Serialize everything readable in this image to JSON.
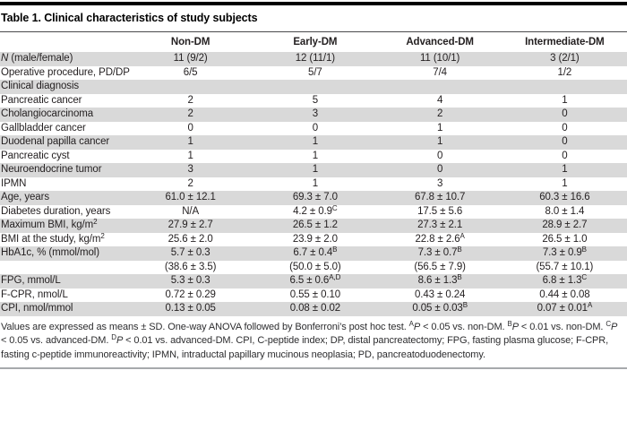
{
  "title": "Table 1. Clinical characteristics of study subjects",
  "table": {
    "row_label_header": "",
    "columns": [
      "Non-DM",
      "Early-DM",
      "Advanced-DM",
      "Intermediate-DM"
    ],
    "rows": [
      {
        "label": "*N* (male/female)",
        "cells": [
          "11 (9/2)",
          "12 (11/1)",
          "11 (10/1)",
          "3 (2/1)"
        ]
      },
      {
        "label": "Operative procedure, PD/DP",
        "cells": [
          "6/5",
          "5/7",
          "7/4",
          "1/2"
        ]
      },
      {
        "label": "Clinical diagnosis",
        "cells": [
          "",
          "",
          "",
          ""
        ],
        "section": true
      },
      {
        "label": "Pancreatic cancer",
        "cells": [
          "2",
          "5",
          "4",
          "1"
        ]
      },
      {
        "label": "Cholangiocarcinoma",
        "cells": [
          "2",
          "3",
          "2",
          "0"
        ]
      },
      {
        "label": "Gallbladder cancer",
        "cells": [
          "0",
          "0",
          "1",
          "0"
        ]
      },
      {
        "label": "Duodenal papilla cancer",
        "cells": [
          "1",
          "1",
          "1",
          "0"
        ]
      },
      {
        "label": "Pancreatic cyst",
        "cells": [
          "1",
          "1",
          "0",
          "0"
        ]
      },
      {
        "label": "Neuroendocrine tumor",
        "cells": [
          "3",
          "1",
          "0",
          "1"
        ]
      },
      {
        "label": "IPMN",
        "cells": [
          "2",
          "1",
          "3",
          "1"
        ]
      },
      {
        "label": "Age, years",
        "cells": [
          "61.0 ± 12.1",
          "69.3 ± 7.0",
          "67.8 ± 10.7",
          "60.3 ± 16.6"
        ]
      },
      {
        "label": "Diabetes duration, years",
        "cells": [
          "N/A",
          "4.2 ± 0.9^{C}",
          "17.5 ± 5.6",
          "8.0 ± 1.4"
        ]
      },
      {
        "label": "Maximum BMI, kg/m^{2}",
        "cells": [
          "27.9 ± 2.7",
          "26.5 ± 1.2",
          "27.3 ± 2.1",
          "28.9 ± 2.7"
        ]
      },
      {
        "label": "BMI at the study, kg/m^{2}",
        "cells": [
          "25.6 ± 2.0",
          "23.9 ± 2.0",
          "22.8 ± 2.6^{A}",
          "26.5 ± 1.0"
        ]
      },
      {
        "label": "HbA1c, % (mmol/mol)",
        "cells": [
          "5.7 ± 0.3",
          "6.7 ± 0.4^{B}",
          "7.3 ± 0.7^{B}",
          "7.3 ± 0.9^{B}"
        ]
      },
      {
        "label": "",
        "cells": [
          "(38.6 ± 3.5)",
          "(50.0 ± 5.0)",
          "(56.5 ± 7.9)",
          "(55.7 ± 10.1)"
        ]
      },
      {
        "label": "FPG, mmol/L",
        "cells": [
          "5.3 ± 0.3",
          "6.5 ± 0.6^{A,D}",
          "8.6 ± 1.3^{B}",
          "6.8 ± 1.3^{C}"
        ]
      },
      {
        "label": "F-CPR, nmol/L",
        "cells": [
          "0.72 ± 0.29",
          "0.55 ± 0.10",
          "0.43 ± 0.24",
          "0.44 ± 0.08"
        ]
      },
      {
        "label": "CPI, nmol/mmol",
        "cells": [
          "0.13 ± 0.05",
          "0.08 ± 0.02",
          "0.05 ± 0.03^{B}",
          "0.07 ± 0.01^{A}"
        ]
      }
    ]
  },
  "footnote": "Values are expressed as means ± SD. One-way ANOVA followed by Bonferroni’s post hoc test. ^{A}*P* < 0.05 vs. non-DM. ^{B}*P* < 0.01 vs. non-DM. ^{C}*P* < 0.05 vs. advanced-DM. ^{D}*P* < 0.01 vs. advanced-DM. CPI, C-peptide index; DP, distal pancreatectomy; FPG, fasting plasma glucose; F-CPR, fasting c-peptide immunoreactivity; IPMN, intraductal papillary mucinous neoplasia; PD, pancreatoduodenectomy.",
  "colors": {
    "top_bar": "#000000",
    "header_rule": "#4a4a4c",
    "row_shade": "#d9d9d9",
    "text": "#231f20",
    "bottom_rule": "#a7a9ac"
  }
}
